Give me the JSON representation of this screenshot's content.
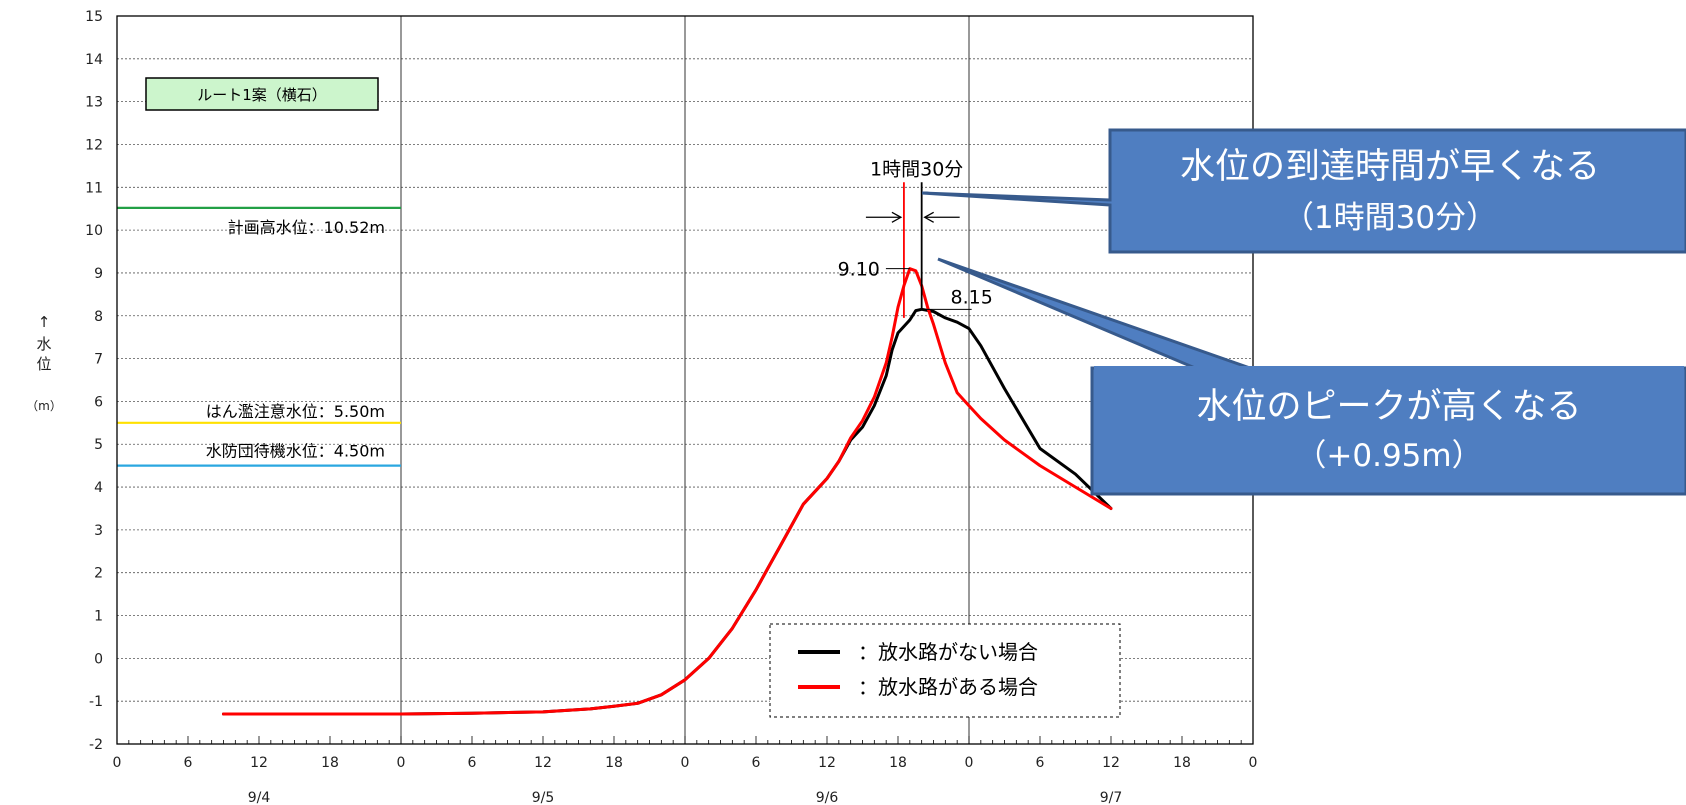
{
  "chart_data": {
    "type": "line",
    "title": "ルート1案（横石）",
    "ylabel": [
      "↑",
      "水",
      "位",
      "（m）"
    ],
    "ylim": [
      -2,
      15
    ],
    "yticks": [
      -2,
      -1,
      0,
      1,
      2,
      3,
      4,
      5,
      6,
      7,
      8,
      9,
      10,
      11,
      12,
      13,
      14,
      15
    ],
    "xlim_hours": [
      0,
      96
    ],
    "xtick_hours": [
      0,
      6,
      12,
      18,
      24,
      30,
      36,
      42,
      48,
      54,
      60,
      66,
      72,
      78,
      84,
      90,
      96
    ],
    "xtick_labels": [
      "0",
      "6",
      "12",
      "18",
      "0",
      "6",
      "12",
      "18",
      "0",
      "6",
      "12",
      "18",
      "0",
      "6",
      "12",
      "18",
      "0"
    ],
    "date_labels": [
      {
        "label": "9/4",
        "hour": 12
      },
      {
        "label": "9/5",
        "hour": 36
      },
      {
        "label": "9/6",
        "hour": 60
      },
      {
        "label": "9/7",
        "hour": 84
      }
    ],
    "grid": true,
    "legend_position": "bottom-right",
    "reference_lines": [
      {
        "name": "計画高水位：10.52m",
        "value": 10.52,
        "color": "#22a046"
      },
      {
        "name": "はん濫注意水位：5.50m",
        "value": 5.5,
        "color": "#ffe100"
      },
      {
        "name": "水防団待機水位：4.50m",
        "value": 4.5,
        "color": "#2aa7e0"
      }
    ],
    "series": [
      {
        "name": "：放水路がない場合",
        "color": "#000000",
        "x": [
          9,
          12,
          18,
          24,
          30,
          36,
          40,
          42,
          44,
          46,
          48,
          50,
          52,
          54,
          55,
          56,
          57,
          58,
          59,
          60,
          61,
          62,
          63,
          64,
          65,
          65.5,
          66,
          67,
          67.5,
          68,
          69,
          70,
          71,
          72,
          73,
          75,
          78,
          81,
          84
        ],
        "y": [
          -1.3,
          -1.3,
          -1.3,
          -1.3,
          -1.28,
          -1.25,
          -1.18,
          -1.12,
          -1.05,
          -0.85,
          -0.5,
          0.0,
          0.7,
          1.6,
          2.1,
          2.6,
          3.1,
          3.6,
          3.9,
          4.2,
          4.6,
          5.1,
          5.4,
          5.9,
          6.6,
          7.2,
          7.6,
          7.9,
          8.12,
          8.15,
          8.1,
          7.95,
          7.85,
          7.7,
          7.3,
          6.3,
          4.9,
          4.3,
          3.5
        ]
      },
      {
        "name": "：放水路がある場合",
        "color": "#ff0000",
        "x": [
          9,
          12,
          18,
          24,
          30,
          36,
          40,
          42,
          44,
          46,
          48,
          50,
          52,
          54,
          55,
          56,
          57,
          58,
          59,
          60,
          61,
          62,
          63,
          64,
          65,
          65.5,
          66,
          66.5,
          67,
          67.5,
          68,
          68.5,
          69,
          70,
          71,
          72,
          73,
          75,
          78,
          81,
          84
        ],
        "y": [
          -1.3,
          -1.3,
          -1.3,
          -1.3,
          -1.28,
          -1.25,
          -1.18,
          -1.12,
          -1.05,
          -0.85,
          -0.5,
          0.0,
          0.7,
          1.6,
          2.1,
          2.6,
          3.1,
          3.6,
          3.9,
          4.2,
          4.6,
          5.15,
          5.55,
          6.1,
          6.9,
          7.5,
          8.2,
          8.7,
          9.1,
          9.05,
          8.7,
          8.2,
          7.8,
          6.9,
          6.2,
          5.9,
          5.6,
          5.1,
          4.5,
          4.0,
          3.5
        ]
      }
    ],
    "annotations": {
      "peak_with": "9.10",
      "peak_without": "8.15",
      "time_diff": "1時間30分"
    }
  },
  "callouts": [
    {
      "line1": "水位の到達時間が早くなる",
      "line2": "（1時間30分）"
    },
    {
      "line1": "水位のピークが高くなる",
      "line2": "（+0.95m）"
    }
  ],
  "colors": {
    "callout_fill": "#4f7ec1",
    "callout_stroke": "#375a8c",
    "title_box": "#ccf5cc"
  }
}
